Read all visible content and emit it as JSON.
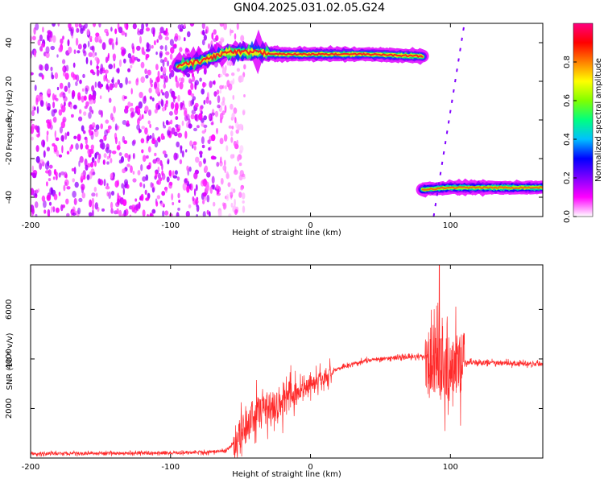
{
  "title": "GN04.2025.031.02.05.G24",
  "colors": {
    "spectrogram_colormap": [
      "#ffffff",
      "#ff00ff",
      "#8000ff",
      "#0000ff",
      "#00c0ff",
      "#00ff80",
      "#80ff00",
      "#ffff00",
      "#ff8000",
      "#ff0000",
      "#ff0080"
    ],
    "snr_line": "#ff2a2a"
  },
  "chart_data": [
    {
      "type": "heatmap",
      "xlabel": "Height of straight line (km)",
      "ylabel": "Frequency (Hz)",
      "xlim": [
        -200,
        166
      ],
      "ylim": [
        -50,
        50
      ],
      "xticks": [
        -200,
        -100,
        0,
        100
      ],
      "yticks": [
        -40,
        -20,
        0,
        20,
        40
      ],
      "colorbar": {
        "label": "Normalized spectral amplitude",
        "range": [
          0,
          1
        ],
        "ticks": [
          0.0,
          0.2,
          0.4,
          0.6,
          0.8
        ]
      },
      "features": [
        {
          "description": "broadband noise",
          "x_range": [
            -200,
            -55
          ],
          "freq_range": [
            -50,
            50
          ],
          "amplitude": 0.12
        },
        {
          "description": "signal tone",
          "x_range": [
            -95,
            80
          ],
          "freq": [
            [
              -95,
              28
            ],
            [
              -80,
              30
            ],
            [
              -60,
              35
            ],
            [
              -40,
              35
            ],
            [
              -20,
              34
            ],
            [
              0,
              34
            ],
            [
              40,
              34
            ],
            [
              80,
              33
            ]
          ],
          "amplitude": 0.95
        },
        {
          "description": "signal tone",
          "x_range": [
            80,
            166
          ],
          "freq": [
            [
              80,
              -36
            ],
            [
              100,
              -35
            ],
            [
              140,
              -35
            ],
            [
              166,
              -35
            ]
          ],
          "amplitude": 0.85
        },
        {
          "description": "sweep",
          "x_range": [
            88,
            110
          ],
          "freq": [
            [
              88,
              -50
            ],
            [
              96,
              -20
            ],
            [
              104,
              20
            ],
            [
              110,
              50
            ]
          ],
          "amplitude": 0.2
        }
      ]
    },
    {
      "type": "line",
      "xlabel": "Height of straight line (km)",
      "ylabel": "SNR (10 * v/v)",
      "xlim": [
        -200,
        166
      ],
      "ylim": [
        0,
        7800
      ],
      "xticks": [
        -200,
        -100,
        0,
        100
      ],
      "yticks": [
        2000,
        4000,
        6000
      ],
      "series": [
        {
          "points": [
            [
              -200,
              180
            ],
            [
              -150,
              190
            ],
            [
              -100,
              210
            ],
            [
              -75,
              230
            ],
            [
              -60,
              300
            ],
            [
              -50,
              900
            ],
            [
              -40,
              1800
            ],
            [
              -25,
              2200
            ],
            [
              -10,
              2600
            ],
            [
              0,
              3000
            ],
            [
              10,
              3300
            ],
            [
              20,
              3600
            ],
            [
              30,
              3800
            ],
            [
              40,
              3950
            ],
            [
              60,
              4050
            ],
            [
              80,
              4100
            ],
            [
              86,
              4100
            ],
            [
              90,
              3800
            ],
            [
              95,
              3500
            ],
            [
              100,
              3600
            ],
            [
              105,
              3800
            ],
            [
              110,
              3850
            ],
            [
              130,
              3850
            ],
            [
              150,
              3800
            ],
            [
              166,
              3800
            ]
          ],
          "noise_bands": [
            {
              "x_range": [
                -55,
                -10
              ],
              "spread": 1400
            },
            {
              "x_range": [
                -10,
                15
              ],
              "spread": 700
            },
            {
              "x_range": [
                15,
                82
              ],
              "spread": 150
            },
            {
              "x_range": [
                82,
                110
              ],
              "spread": 2600
            },
            {
              "x_range": [
                110,
                166
              ],
              "spread": 180
            }
          ],
          "peak": [
            92,
            7800
          ]
        }
      ]
    }
  ]
}
